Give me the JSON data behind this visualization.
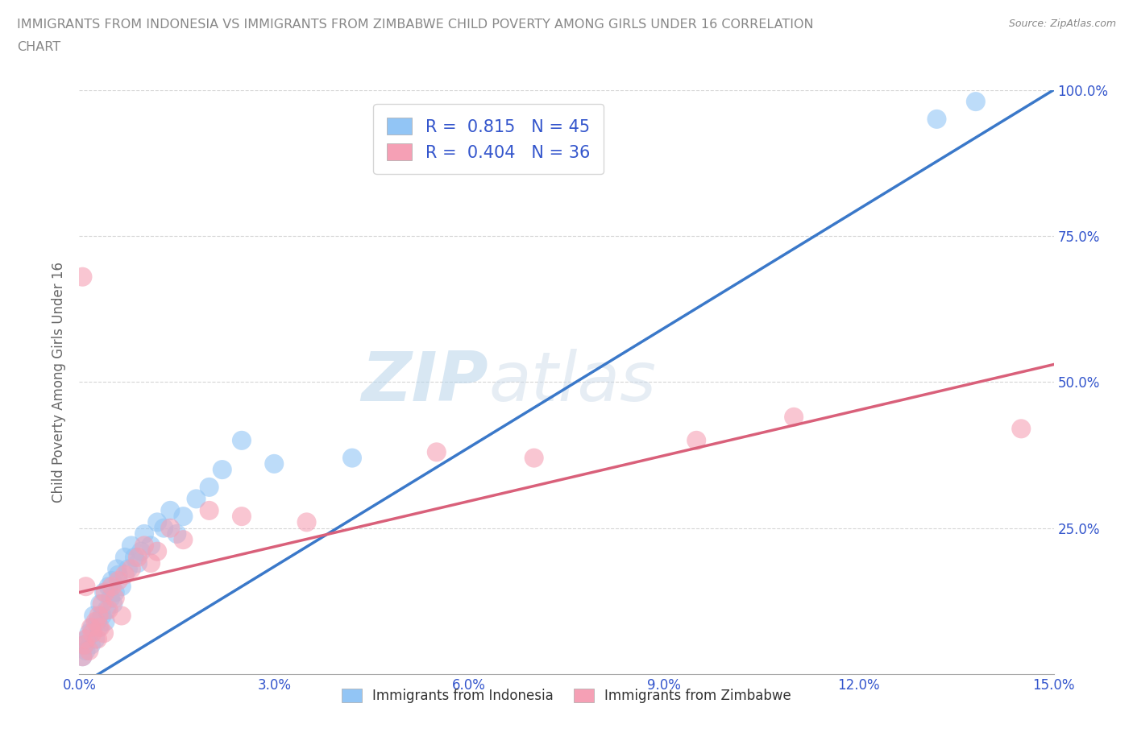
{
  "title_line1": "IMMIGRANTS FROM INDONESIA VS IMMIGRANTS FROM ZIMBABWE CHILD POVERTY AMONG GIRLS UNDER 16 CORRELATION",
  "title_line2": "CHART",
  "source": "Source: ZipAtlas.com",
  "ylabel": "Child Poverty Among Girls Under 16",
  "xlim": [
    0.0,
    15.0
  ],
  "ylim": [
    0.0,
    100.0
  ],
  "xticks": [
    0.0,
    3.0,
    6.0,
    9.0,
    12.0,
    15.0
  ],
  "yticks": [
    25.0,
    50.0,
    75.0,
    100.0
  ],
  "xtick_labels": [
    "0.0%",
    "3.0%",
    "6.0%",
    "9.0%",
    "12.0%",
    "15.0%"
  ],
  "ytick_labels_right": [
    "25.0%",
    "50.0%",
    "75.0%",
    "100.0%"
  ],
  "indonesia_color": "#92C5F5",
  "zimbabwe_color": "#F5A0B5",
  "indonesia_R": 0.815,
  "indonesia_N": 45,
  "zimbabwe_R": 0.404,
  "zimbabwe_N": 36,
  "indonesia_line_color": "#3A78C9",
  "zimbabwe_line_color": "#D9607A",
  "watermark_zip": "ZIP",
  "watermark_atlas": "atlas",
  "watermark_color": "#C5DCF0",
  "background_color": "#FFFFFF",
  "legend_text_color": "#3355CC",
  "title_color": "#888888",
  "axis_label_color": "#666666",
  "tick_color": "#3355CC",
  "grid_color": "#CCCCCC",
  "legend_box_color": "#FFFFFF",
  "indonesia_line_x0": 0.0,
  "indonesia_line_y0": -2.0,
  "indonesia_line_x1": 15.0,
  "indonesia_line_y1": 100.0,
  "zimbabwe_line_x0": 0.0,
  "zimbabwe_line_y0": 14.0,
  "zimbabwe_line_x1": 15.0,
  "zimbabwe_line_y1": 53.0,
  "indonesia_x": [
    0.05,
    0.08,
    0.1,
    0.12,
    0.15,
    0.18,
    0.2,
    0.22,
    0.25,
    0.28,
    0.3,
    0.32,
    0.35,
    0.38,
    0.4,
    0.42,
    0.45,
    0.48,
    0.5,
    0.52,
    0.55,
    0.58,
    0.6,
    0.65,
    0.7,
    0.75,
    0.8,
    0.85,
    0.9,
    0.95,
    1.0,
    1.1,
    1.2,
    1.3,
    1.4,
    1.5,
    1.6,
    1.8,
    2.0,
    2.2,
    2.5,
    3.0,
    4.2,
    13.2,
    13.8
  ],
  "indonesia_y": [
    3,
    5,
    4,
    6,
    7,
    5,
    8,
    10,
    6,
    9,
    8,
    12,
    10,
    14,
    9,
    11,
    15,
    13,
    16,
    12,
    14,
    18,
    17,
    15,
    20,
    18,
    22,
    20,
    19,
    21,
    24,
    22,
    26,
    25,
    28,
    24,
    27,
    30,
    32,
    35,
    40,
    36,
    37,
    95,
    98
  ],
  "zimbabwe_x": [
    0.05,
    0.08,
    0.1,
    0.15,
    0.18,
    0.2,
    0.25,
    0.28,
    0.3,
    0.32,
    0.35,
    0.38,
    0.4,
    0.45,
    0.5,
    0.55,
    0.6,
    0.65,
    0.7,
    0.8,
    0.9,
    1.0,
    1.1,
    1.2,
    1.4,
    1.6,
    2.0,
    2.5,
    3.5,
    5.5,
    7.0,
    9.5,
    11.0,
    14.5,
    0.05,
    0.1
  ],
  "zimbabwe_y": [
    3,
    5,
    6,
    4,
    8,
    7,
    9,
    6,
    10,
    8,
    12,
    7,
    14,
    11,
    15,
    13,
    16,
    10,
    17,
    18,
    20,
    22,
    19,
    21,
    25,
    23,
    28,
    27,
    26,
    38,
    37,
    40,
    44,
    42,
    68,
    15
  ]
}
